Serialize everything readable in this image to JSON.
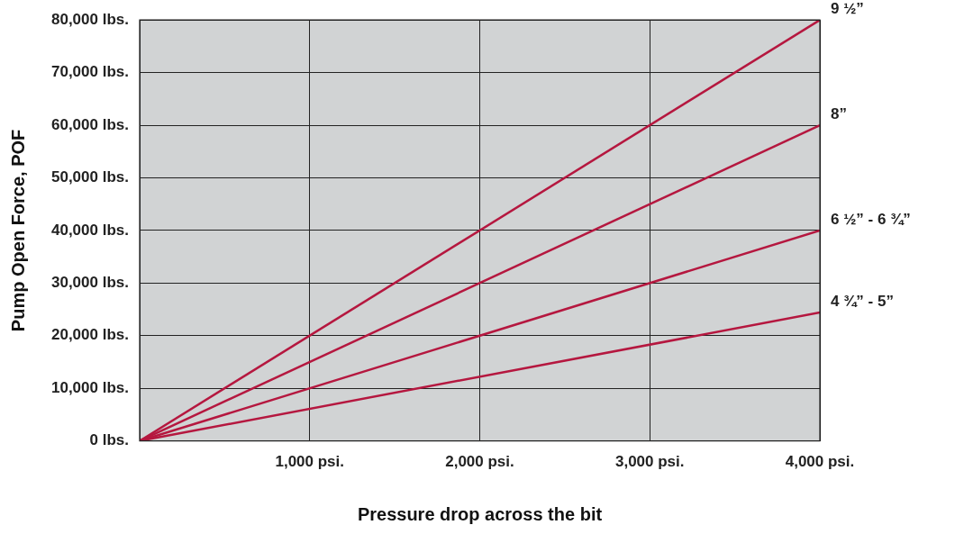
{
  "chart_data": {
    "type": "line",
    "xlabel": "Pressure drop across the bit",
    "ylabel": "Pump Open Force, POF",
    "x": [
      0,
      4000
    ],
    "series": [
      {
        "name": "9 ½”",
        "color": "#b5173f",
        "values": [
          0,
          80000
        ]
      },
      {
        "name": "8”",
        "color": "#b5173f",
        "values": [
          0,
          60000
        ]
      },
      {
        "name": "6 ½” - 6 ¾”",
        "color": "#b5173f",
        "values": [
          0,
          40000
        ]
      },
      {
        "name": "4 ¾” - 5”",
        "color": "#b5173f",
        "values": [
          0,
          24400
        ]
      }
    ],
    "xlim": [
      0,
      4000
    ],
    "xticks": [
      {
        "value": 0,
        "label": null
      },
      {
        "value": 1000,
        "label": "1,000 psi."
      },
      {
        "value": 2000,
        "label": "2,000 psi."
      },
      {
        "value": 3000,
        "label": "3,000 psi."
      },
      {
        "value": 4000,
        "label": "4,000 psi."
      }
    ],
    "ylim": [
      0,
      80000
    ],
    "yticks": [
      {
        "value": 0,
        "label": "0 lbs."
      },
      {
        "value": 10000,
        "label": "10,000 lbs."
      },
      {
        "value": 20000,
        "label": "20,000 lbs."
      },
      {
        "value": 30000,
        "label": "30,000 lbs."
      },
      {
        "value": 40000,
        "label": "40,000 lbs."
      },
      {
        "value": 50000,
        "label": "50,000 lbs."
      },
      {
        "value": 60000,
        "label": "60,000 lbs."
      },
      {
        "value": 70000,
        "label": "70,000 lbs."
      },
      {
        "value": 80000,
        "label": "80,000 lbs."
      }
    ],
    "grid": true,
    "legend": false,
    "marker": "none",
    "line_style": "solid"
  }
}
